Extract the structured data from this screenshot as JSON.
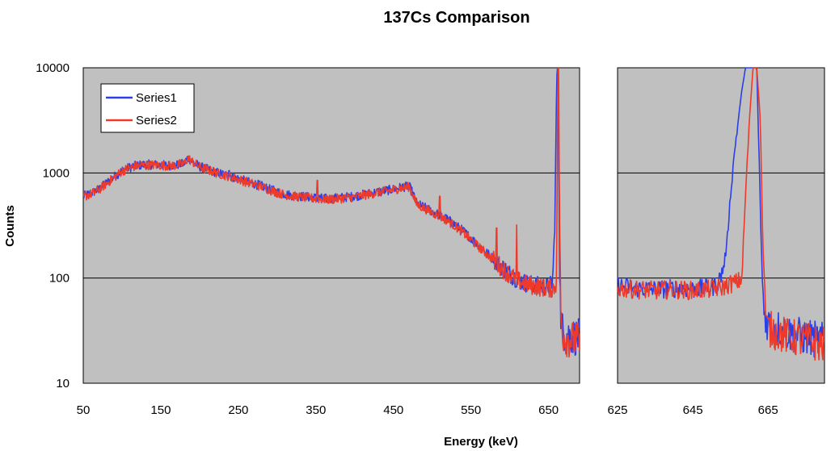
{
  "chart_data": {
    "type": "line",
    "title": "137Cs Comparison",
    "xlabel": "Energy (keV)",
    "ylabel": "Counts",
    "yscale": "log",
    "ylim": [
      10,
      10000
    ],
    "yticks": [
      "10",
      "100",
      "1000",
      "10000"
    ],
    "legend": {
      "position": "top-left",
      "entries": [
        "Series1",
        "Series2"
      ]
    },
    "colors": {
      "Series1": "#2b3fe6",
      "Series2": "#ef3a2a",
      "plot_bg": "#c0c0c0",
      "grid": "#000000"
    },
    "panels": [
      {
        "name": "full",
        "xlim": [
          50,
          690
        ],
        "xticks": [
          "50",
          "150",
          "250",
          "350",
          "450",
          "550",
          "650"
        ],
        "series": [
          {
            "name": "Series1",
            "x": [
              50,
              60,
              70,
              80,
              90,
              100,
              110,
              120,
              130,
              140,
              150,
              160,
              170,
              180,
              185,
              190,
              200,
              210,
              220,
              230,
              240,
              250,
              260,
              270,
              280,
              290,
              300,
              310,
              320,
              330,
              340,
              350,
              360,
              370,
              380,
              390,
              400,
              410,
              420,
              430,
              440,
              450,
              460,
              470,
              475,
              480,
              490,
              500,
              510,
              520,
              530,
              540,
              550,
              560,
              570,
              580,
              590,
              600,
              610,
              620,
              630,
              640,
              650,
              655,
              658,
              660,
              661,
              662,
              663,
              664,
              666,
              668,
              672,
              680,
              690
            ],
            "y": [
              600,
              640,
              700,
              800,
              920,
              1050,
              1130,
              1180,
              1200,
              1200,
              1190,
              1180,
              1190,
              1230,
              1400,
              1300,
              1150,
              1080,
              1020,
              970,
              930,
              880,
              830,
              790,
              750,
              700,
              660,
              630,
              610,
              600,
              590,
              580,
              570,
              570,
              580,
              590,
              600,
              620,
              640,
              660,
              680,
              700,
              730,
              750,
              640,
              510,
              470,
              430,
              395,
              360,
              320,
              280,
              240,
              205,
              175,
              150,
              128,
              110,
              97,
              90,
              86,
              84,
              82,
              90,
              300,
              4000,
              10000,
              10000,
              2000,
              160,
              40,
              32,
              29,
              28,
              27
            ]
          },
          {
            "name": "Series2",
            "x": [
              50,
              60,
              70,
              80,
              90,
              100,
              110,
              120,
              130,
              140,
              150,
              160,
              170,
              180,
              185,
              190,
              200,
              210,
              220,
              230,
              240,
              250,
              260,
              270,
              280,
              290,
              300,
              310,
              320,
              330,
              340,
              350,
              360,
              370,
              380,
              390,
              400,
              410,
              420,
              430,
              440,
              450,
              460,
              470,
              475,
              480,
              490,
              500,
              510,
              520,
              530,
              540,
              550,
              560,
              570,
              580,
              590,
              600,
              610,
              620,
              630,
              640,
              650,
              655,
              658,
              660,
              661,
              662,
              663,
              664,
              666,
              668,
              672,
              680,
              690
            ],
            "y": [
              590,
              630,
              690,
              790,
              910,
              1040,
              1120,
              1170,
              1190,
              1190,
              1180,
              1170,
              1180,
              1220,
              1380,
              1290,
              1140,
              1070,
              1010,
              960,
              920,
              870,
              820,
              780,
              740,
              690,
              650,
              620,
              600,
              590,
              580,
              570,
              560,
              560,
              570,
              580,
              590,
              610,
              630,
              650,
              670,
              690,
              720,
              740,
              630,
              500,
              460,
              420,
              385,
              350,
              310,
              270,
              230,
              198,
              170,
              146,
              124,
              107,
              95,
              88,
              84,
              82,
              80,
              80,
              82,
              90,
              400,
              10000,
              10000,
              500,
              40,
              30,
              27,
              26,
              25
            ]
          }
        ],
        "peaks": [
          {
            "series": "Series1",
            "x": 238,
            "y": 1050
          },
          {
            "series": "Series2",
            "x": 352,
            "y": 850
          },
          {
            "series": "Series2",
            "x": 510,
            "y": 600
          },
          {
            "series": "Series2",
            "x": 583,
            "y": 300
          },
          {
            "series": "Series2",
            "x": 609,
            "y": 320
          }
        ]
      },
      {
        "name": "zoom",
        "xlim": [
          625,
          680
        ],
        "xticks": [
          "625",
          "645",
          "665"
        ],
        "series": [
          {
            "name": "Series1",
            "x": [
              625,
              630,
              635,
              640,
              645,
              648,
              650,
              651,
              652,
              653,
              654,
              655,
              656,
              657,
              658,
              659,
              660,
              661,
              662,
              663,
              663.5,
              664,
              664.5,
              665,
              666,
              667,
              668,
              670,
              672,
              674,
              676,
              678,
              680
            ],
            "y": [
              85,
              80,
              78,
              80,
              78,
              80,
              82,
              85,
              95,
              120,
              200,
              600,
              1500,
              3000,
              6000,
              10000,
              10000,
              10000,
              10000,
              400,
              90,
              45,
              40,
              38,
              36,
              35,
              33,
              30,
              29,
              28,
              27,
              26,
              25
            ]
          },
          {
            "name": "Series2",
            "x": [
              625,
              630,
              635,
              640,
              645,
              648,
              650,
              651,
              652,
              653,
              654,
              655,
              656,
              657,
              658,
              659,
              660,
              661,
              662,
              663,
              663.5,
              664,
              664.5,
              665,
              666,
              667,
              668,
              670,
              672,
              674,
              676,
              678,
              680
            ],
            "y": [
              80,
              78,
              76,
              78,
              76,
              78,
              78,
              80,
              80,
              82,
              85,
              88,
              90,
              92,
              100,
              600,
              3000,
              10000,
              10000,
              3000,
              300,
              100,
              35,
              33,
              32,
              31,
              30,
              28,
              27,
              26,
              25,
              24,
              23
            ]
          }
        ]
      }
    ]
  }
}
